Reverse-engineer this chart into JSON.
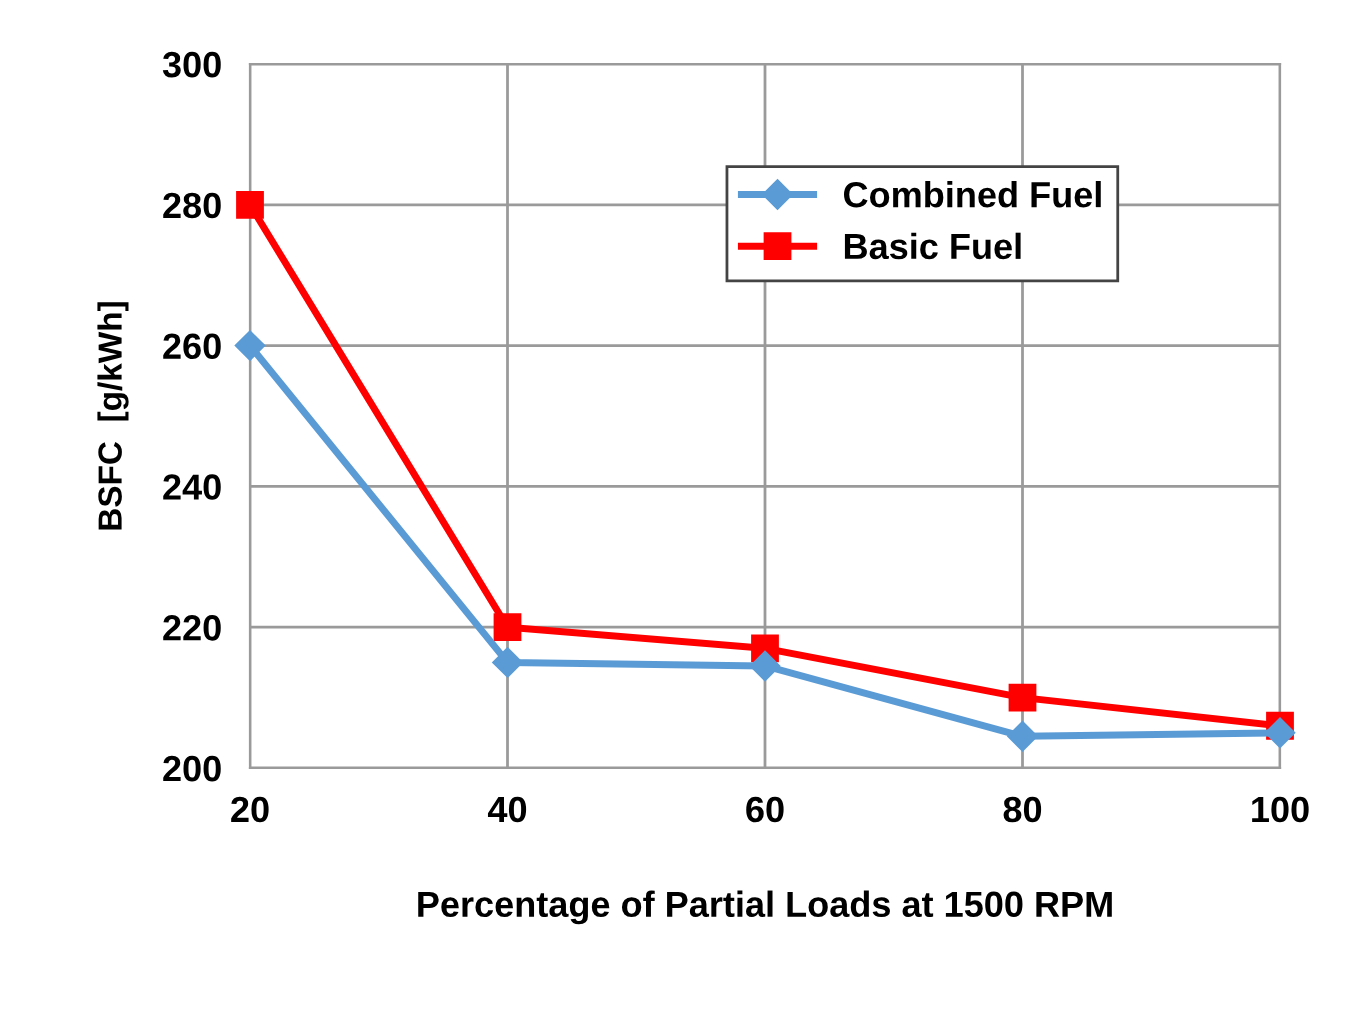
{
  "chart_data": {
    "type": "line",
    "xlabel": "Percentage of Partial Loads at 1500 RPM",
    "ylabel": "BSFC  [g/kWh]",
    "x": [
      20,
      40,
      60,
      80,
      100
    ],
    "series": [
      {
        "name": "Combined Fuel",
        "color": "#5b9bd5",
        "marker": "diamond",
        "values": [
          260,
          215,
          214.5,
          204.5,
          205
        ]
      },
      {
        "name": "Basic Fuel",
        "color": "#ff0000",
        "marker": "square",
        "values": [
          280,
          220,
          217,
          210,
          206
        ]
      }
    ],
    "xlim": [
      20,
      100
    ],
    "xticks": [
      20,
      40,
      60,
      80,
      100
    ],
    "ylim": [
      200,
      300
    ],
    "yticks": [
      200,
      220,
      240,
      260,
      280,
      300
    ],
    "grid": true,
    "legend": "top right"
  }
}
